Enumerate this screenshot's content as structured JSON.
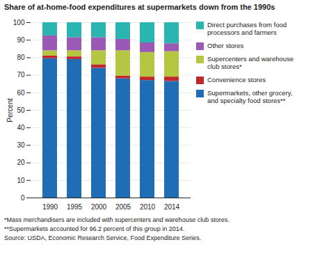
{
  "chart_data": {
    "type": "bar",
    "stacked": true,
    "title": "Share of at-home-food expenditures at supermarkets down from the 1990s",
    "ylabel": "Percent",
    "categories": [
      "1990",
      "1995",
      "2000",
      "2005",
      "2010",
      "2014"
    ],
    "series": [
      {
        "name": "Supermarkets, other grocery,\nand specialty food stores**",
        "color": "#1f6eb5",
        "values": [
          79.5,
          79.0,
          74.0,
          68.0,
          67.0,
          66.5
        ]
      },
      {
        "name": "Convenience stores",
        "color": "#c0282d",
        "values": [
          1.5,
          1.5,
          2.0,
          1.5,
          2.0,
          2.5
        ]
      },
      {
        "name": "Supercenters and warehouse\nclub stores*",
        "color": "#b5c642",
        "values": [
          3.0,
          3.5,
          8.0,
          14.5,
          14.0,
          14.5
        ]
      },
      {
        "name": "Other stores",
        "color": "#9b59b6",
        "values": [
          8.5,
          7.5,
          7.5,
          6.5,
          5.5,
          4.5
        ]
      },
      {
        "name": "Direct purchases from food\nprocessors and farmers",
        "color": "#2ab5b0",
        "values": [
          7.5,
          8.5,
          8.5,
          9.5,
          11.5,
          12.0
        ]
      }
    ],
    "ylim": [
      0,
      100
    ],
    "yticks": [
      0,
      10,
      20,
      30,
      40,
      50,
      60,
      70,
      80,
      90,
      100
    ],
    "grid": true,
    "legend": "upper right",
    "annotations": [
      "*Mass merchandisers are included with supercenters and warehouse club stores.",
      "**Supermarkets accounted for 96.2 percent of this group in 2014.",
      "Source:  USDA, Economic Research Service, Food Expenditure Series."
    ]
  }
}
